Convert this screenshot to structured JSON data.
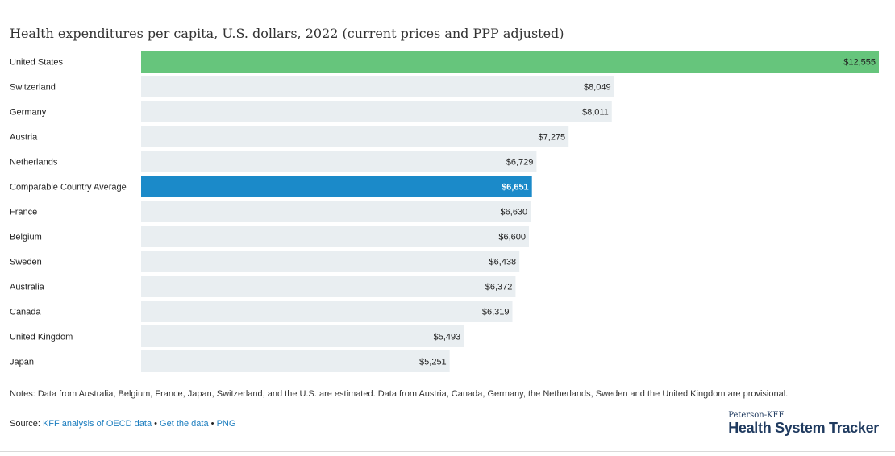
{
  "title": "Health expenditures per capita, U.S. dollars, 2022 (current prices and PPP adjusted)",
  "chart_data": {
    "type": "bar",
    "orientation": "horizontal",
    "title": "Health expenditures per capita, U.S. dollars, 2022 (current prices and PPP adjusted)",
    "categories": [
      "United States",
      "Switzerland",
      "Germany",
      "Austria",
      "Netherlands",
      "Comparable Country Average",
      "France",
      "Belgium",
      "Sweden",
      "Australia",
      "Canada",
      "United Kingdom",
      "Japan"
    ],
    "values": [
      12555,
      8049,
      8011,
      7275,
      6729,
      6651,
      6630,
      6600,
      6438,
      6372,
      6319,
      5493,
      5251
    ],
    "labels": [
      "$12,555",
      "$8,049",
      "$8,011",
      "$7,275",
      "$6,729",
      "$6,651",
      "$6,630",
      "$6,600",
      "$6,438",
      "$6,372",
      "$6,319",
      "$5,493",
      "$5,251"
    ],
    "xlim": [
      0,
      12555
    ],
    "grid": false,
    "highlight": {
      "United States": "#66c57c",
      "Comparable Country Average": "#1b8ac9"
    },
    "track_color": "#e9eef1"
  },
  "notes": "Notes: Data from Australia, Belgium, France, Japan, Switzerland, and the U.S. are estimated. Data from Austria, Canada, Germany, the Netherlands, Sweden and the United Kingdom are provisional.",
  "source": {
    "prefix": "Source: ",
    "links": [
      "KFF analysis of OECD data",
      "Get the data",
      "PNG"
    ],
    "separator": " • "
  },
  "brand": {
    "small": "Peterson-KFF",
    "big": "Health System Tracker"
  }
}
